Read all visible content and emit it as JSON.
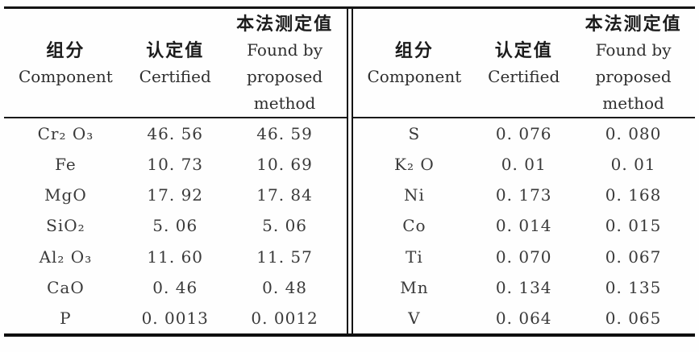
{
  "page": {
    "background": "#fefefe",
    "rule_color": "#141414",
    "text_color": "#3a3a3a",
    "header_text_color": "#1c1c1c"
  },
  "header": {
    "component_zh": "组分",
    "component_en": "Component",
    "certified_zh": "认定值",
    "certified_en": "Certified",
    "found_zh": "本法测定值",
    "found_en_line1": "Found by",
    "found_en_line2": "proposed",
    "found_en_line3": "method"
  },
  "left_table": {
    "rows": [
      {
        "component": "Cr₂ O₃",
        "certified": "46. 56",
        "found": "46. 59"
      },
      {
        "component": "Fe",
        "certified": "10. 73",
        "found": "10. 69"
      },
      {
        "component": "MgO",
        "certified": "17. 92",
        "found": "17. 84"
      },
      {
        "component": "SiO₂",
        "certified": "5. 06",
        "found": "5. 06"
      },
      {
        "component": "Al₂ O₃",
        "certified": "11. 60",
        "found": "11. 57"
      },
      {
        "component": "CaO",
        "certified": "0. 46",
        "found": "0. 48"
      },
      {
        "component": "P",
        "certified": "0. 0013",
        "found": "0. 0012"
      }
    ]
  },
  "right_table": {
    "rows": [
      {
        "component": "S",
        "certified": "0. 076",
        "found": "0. 080"
      },
      {
        "component": "K₂ O",
        "certified": "0. 01",
        "found": "0. 01"
      },
      {
        "component": "Ni",
        "certified": "0. 173",
        "found": "0. 168"
      },
      {
        "component": "Co",
        "certified": "0. 014",
        "found": "0. 015"
      },
      {
        "component": "Ti",
        "certified": "0. 070",
        "found": "0. 067"
      },
      {
        "component": "Mn",
        "certified": "0. 134",
        "found": "0. 135"
      },
      {
        "component": "V",
        "certified": "0. 064",
        "found": "0. 065"
      }
    ]
  }
}
